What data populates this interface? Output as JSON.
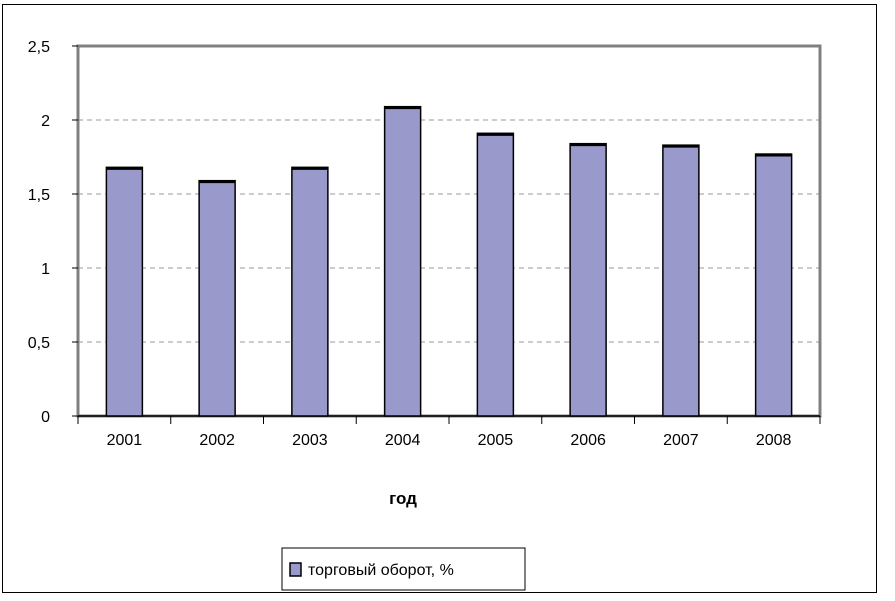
{
  "chart_data": {
    "type": "bar",
    "title": "",
    "xlabel": "год",
    "ylabel": "",
    "categories": [
      "2001",
      "2002",
      "2003",
      "2004",
      "2005",
      "2006",
      "2007",
      "2008"
    ],
    "series": [
      {
        "name": "торговый оборот, %",
        "values": [
          1.68,
          1.59,
          1.68,
          2.09,
          1.91,
          1.84,
          1.83,
          1.77
        ]
      }
    ],
    "ylim": [
      0,
      2.5
    ],
    "yticks": [
      "0",
      "0,5",
      "1",
      "1,5",
      "2",
      "2,5"
    ],
    "grid": true,
    "legend_position": "bottom",
    "colors": {
      "bar": "#9999cc",
      "bar_edge": "#000000",
      "grid": "#999999"
    }
  }
}
